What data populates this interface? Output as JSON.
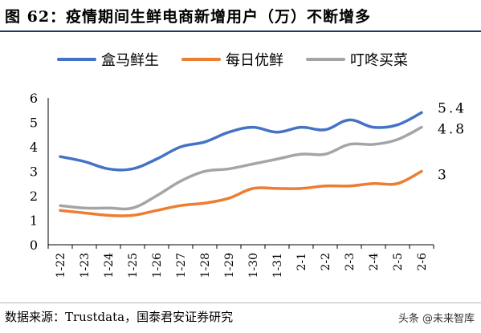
{
  "header": {
    "title": "图 62：疫情期间生鲜电商新增用户（万）不断增多"
  },
  "footer": {
    "source": "数据来源：Trustdata，国泰君安证券研究",
    "watermark": "头条 @未来智库"
  },
  "colors": {
    "title_rule": "#1f3864",
    "hema": "#4472c4",
    "mrsx": "#ed7d31",
    "dddmc": "#a5a5a5"
  },
  "chart_data": {
    "type": "line",
    "title": "",
    "xlabel": "",
    "ylabel": "",
    "ylim": [
      0,
      6
    ],
    "yticks": [
      0,
      1,
      2,
      3,
      4,
      5,
      6
    ],
    "grid": false,
    "legend_position": "top",
    "categories": [
      "1-22",
      "1-23",
      "1-24",
      "1-25",
      "1-26",
      "1-27",
      "1-28",
      "1-29",
      "1-30",
      "1-31",
      "2-1",
      "2-2",
      "2-3",
      "2-4",
      "2-5",
      "2-6"
    ],
    "series": [
      {
        "name": "盒马鲜生",
        "color": "#4472c4",
        "end_label": "5.4",
        "values": [
          3.6,
          3.4,
          3.1,
          3.1,
          3.5,
          4.0,
          4.2,
          4.6,
          4.8,
          4.6,
          4.8,
          4.7,
          5.1,
          4.8,
          4.9,
          5.4
        ]
      },
      {
        "name": "每日优鲜",
        "color": "#ed7d31",
        "end_label": "3",
        "values": [
          1.4,
          1.3,
          1.2,
          1.2,
          1.4,
          1.6,
          1.7,
          1.9,
          2.3,
          2.3,
          2.3,
          2.4,
          2.4,
          2.5,
          2.5,
          3.0
        ]
      },
      {
        "name": "叮咚买菜",
        "color": "#a5a5a5",
        "end_label": "4.8",
        "values": [
          1.6,
          1.5,
          1.5,
          1.5,
          2.0,
          2.6,
          3.0,
          3.1,
          3.3,
          3.5,
          3.7,
          3.7,
          4.1,
          4.1,
          4.3,
          4.8
        ]
      }
    ]
  }
}
